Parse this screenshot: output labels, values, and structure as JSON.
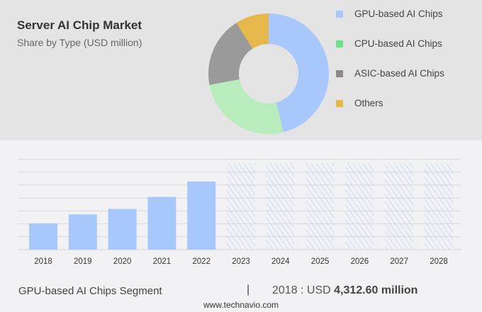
{
  "header": {
    "title": "Server AI Chip Market",
    "subtitle": "Share by Type (USD million)"
  },
  "chart_data": [
    {
      "type": "pie",
      "variant": "donut",
      "title": "Server AI Chip Market",
      "subtitle": "Share by Type (USD million)",
      "categories": [
        "GPU-based AI Chips",
        "CPU-based AI Chips",
        "ASIC-based AI Chips",
        "Others"
      ],
      "values": [
        46,
        26,
        19,
        9
      ],
      "colors": [
        "#a8c8fc",
        "#b8ecbc",
        "#9a9a9a",
        "#e6b84c"
      ],
      "legend_colors": [
        "#a8c8fc",
        "#6ee08a",
        "#8a8a8a",
        "#e6b84c"
      ],
      "legend": "right"
    },
    {
      "type": "bar",
      "categories": [
        "2018",
        "2019",
        "2020",
        "2021",
        "2022",
        "2023",
        "2024",
        "2025",
        "2026",
        "2027",
        "2028"
      ],
      "values": [
        4312.6,
        5783,
        6690,
        8660,
        11190,
        null,
        null,
        null,
        null,
        null,
        null
      ],
      "forecast_years": [
        "2023",
        "2024",
        "2025",
        "2026",
        "2027",
        "2028"
      ],
      "bar_color": "#a8c8fc",
      "grid": true,
      "ylim": [
        0,
        14800
      ],
      "xlabel": "",
      "ylabel": ""
    }
  ],
  "footer": {
    "segment": "GPU-based AI Chips Segment",
    "separator": "|",
    "year_label": "2018 : USD",
    "value": "4,312.60 million",
    "site": "www.technavio.com"
  }
}
